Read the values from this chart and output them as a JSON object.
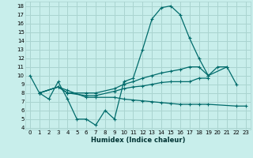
{
  "xlabel": "Humidex (Indice chaleur)",
  "bg_color": "#c8eeeb",
  "grid_color": "#aad4d0",
  "line_color": "#006b6b",
  "xlim": [
    -0.5,
    23.5
  ],
  "ylim": [
    3.8,
    18.5
  ],
  "yticks": [
    4,
    5,
    6,
    7,
    8,
    9,
    10,
    11,
    12,
    13,
    14,
    15,
    16,
    17,
    18
  ],
  "xticks": [
    0,
    1,
    2,
    3,
    4,
    5,
    6,
    7,
    8,
    9,
    10,
    11,
    12,
    13,
    14,
    15,
    16,
    17,
    18,
    19,
    20,
    21,
    22,
    23
  ],
  "series": [
    {
      "x": [
        0,
        1,
        2,
        3,
        4,
        5,
        6,
        7,
        8,
        9,
        10,
        11,
        12,
        13,
        14,
        15,
        16,
        17,
        18,
        19,
        20,
        21,
        22
      ],
      "y": [
        10.0,
        8.0,
        7.3,
        9.3,
        7.3,
        5.0,
        5.0,
        4.3,
        6.0,
        5.0,
        9.3,
        9.7,
        13.0,
        16.5,
        17.8,
        18.0,
        17.0,
        14.3,
        12.0,
        10.0,
        11.0,
        11.0,
        9.0
      ]
    },
    {
      "x": [
        1,
        3,
        4,
        6,
        7,
        9,
        10,
        11,
        12,
        13,
        14,
        15,
        16,
        17,
        18,
        19,
        21
      ],
      "y": [
        8.0,
        8.7,
        8.0,
        8.0,
        8.0,
        8.5,
        9.0,
        9.3,
        9.7,
        10.0,
        10.3,
        10.5,
        10.7,
        11.0,
        11.0,
        10.0,
        11.0
      ]
    },
    {
      "x": [
        1,
        3,
        4,
        6,
        7,
        9,
        10,
        11,
        12,
        13,
        14,
        15,
        16,
        17,
        18,
        19
      ],
      "y": [
        8.0,
        8.7,
        8.0,
        7.7,
        7.7,
        8.2,
        8.5,
        8.7,
        8.8,
        9.0,
        9.2,
        9.3,
        9.3,
        9.3,
        9.7,
        9.7
      ]
    },
    {
      "x": [
        1,
        3,
        4,
        6,
        7,
        9,
        10,
        11,
        12,
        13,
        14,
        15,
        16,
        17,
        18,
        19,
        22,
        23
      ],
      "y": [
        8.0,
        8.7,
        8.3,
        7.5,
        7.5,
        7.5,
        7.3,
        7.2,
        7.1,
        7.0,
        6.9,
        6.8,
        6.7,
        6.7,
        6.7,
        6.7,
        6.5,
        6.5
      ]
    }
  ]
}
